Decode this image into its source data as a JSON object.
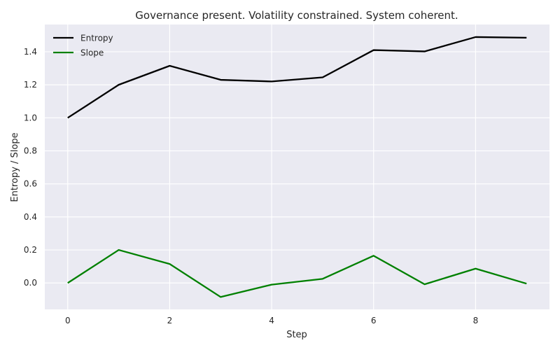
{
  "chart_data": {
    "type": "line",
    "title": "Governance present. Volatility constrained. System coherent.",
    "xlabel": "Step",
    "ylabel": "Entropy / Slope",
    "x": [
      0,
      1,
      2,
      3,
      4,
      5,
      6,
      7,
      8,
      9
    ],
    "series": [
      {
        "name": "Entropy",
        "color": "#000000",
        "values": [
          1.0,
          1.2,
          1.315,
          1.23,
          1.22,
          1.245,
          1.41,
          1.402,
          1.489,
          1.485
        ]
      },
      {
        "name": "Slope",
        "color": "#008000",
        "values": [
          0.0,
          0.2,
          0.115,
          -0.085,
          -0.01,
          0.025,
          0.165,
          -0.008,
          0.087,
          -0.004
        ]
      }
    ],
    "xlim": [
      -0.45,
      9.45
    ],
    "ylim": [
      -0.16,
      1.565
    ],
    "xticks": [
      0,
      2,
      4,
      6,
      8
    ],
    "yticks": [
      0.0,
      0.2,
      0.4,
      0.6,
      0.8,
      1.0,
      1.2,
      1.4
    ],
    "ytick_labels": [
      "0.0",
      "0.2",
      "0.4",
      "0.6",
      "0.8",
      "1.0",
      "1.2",
      "1.4"
    ],
    "grid": true,
    "legend": "upper left",
    "background": "#eaeaf2",
    "grid_color": "#ffffff"
  }
}
